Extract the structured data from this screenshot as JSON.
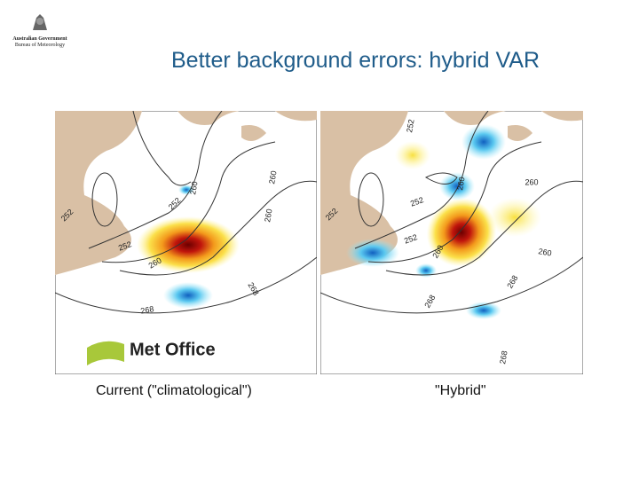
{
  "header": {
    "logo_lines": [
      "Australian Government",
      "Bureau of Meteorology"
    ]
  },
  "title": "Better background errors: hybrid VAR",
  "panels": [
    {
      "caption": "Current (\"climatological\")",
      "logo": "Met Office",
      "contour_labels": [
        "260",
        "260",
        "252",
        "252",
        "252",
        "260",
        "260",
        "268",
        "268"
      ]
    },
    {
      "caption": "\"Hybrid\"",
      "contour_labels": [
        "252",
        "260",
        "260",
        "252",
        "252",
        "252",
        "260",
        "260",
        "268",
        "268",
        "268"
      ]
    }
  ]
}
